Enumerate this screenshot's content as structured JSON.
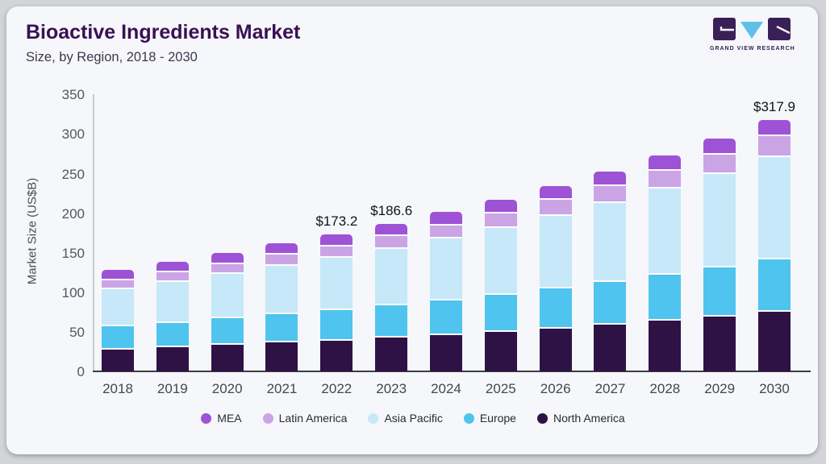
{
  "header": {
    "title": "Bioactive Ingredients Market",
    "subtitle": "Size, by Region, 2018 - 2030"
  },
  "logo": {
    "text": "GRAND VIEW RESEARCH"
  },
  "colors": {
    "page_bg": "#d3d4d8",
    "card_bg": "#f5f7fa",
    "title": "#3a1053",
    "axis_line": "#3c3c44",
    "yaxis_line": "#c9cbd2",
    "tick_text": "#55555e",
    "logo_dark": "#3b2058",
    "logo_blue": "#5ec1e8"
  },
  "chart_data": {
    "type": "bar",
    "stacked": true,
    "title": "Bioactive Ingredients Market Size, by Region, 2018 - 2030",
    "ylabel": "Market Size (US$B)",
    "ylim": [
      0,
      350
    ],
    "yticks": [
      0,
      50,
      100,
      150,
      200,
      250,
      300,
      350
    ],
    "grid": false,
    "legend_position": "bottom",
    "categories": [
      "2018",
      "2019",
      "2020",
      "2021",
      "2022",
      "2023",
      "2024",
      "2025",
      "2026",
      "2027",
      "2028",
      "2029",
      "2030"
    ],
    "series": [
      {
        "name": "North America",
        "color": "#2e1245",
        "values": [
          30.0,
          32.4,
          35.3,
          38.2,
          41.0,
          44.4,
          48.0,
          52.0,
          56.3,
          60.9,
          65.9,
          71.3,
          77.3
        ]
      },
      {
        "name": "Europe",
        "color": "#4fc4ef",
        "values": [
          29.1,
          31.2,
          33.6,
          36.0,
          38.3,
          41.0,
          43.9,
          47.0,
          50.4,
          54.0,
          57.9,
          62.0,
          66.4
        ]
      },
      {
        "name": "Asia Pacific",
        "color": "#c6e8f8",
        "values": [
          47.1,
          51.2,
          56.0,
          61.0,
          65.8,
          71.5,
          77.8,
          84.7,
          92.1,
          100.2,
          109.0,
          118.6,
          129.1
        ]
      },
      {
        "name": "Latin America",
        "color": "#cba4e6",
        "values": [
          11.3,
          12.1,
          13.0,
          14.0,
          14.9,
          16.0,
          17.1,
          18.4,
          19.7,
          21.1,
          22.7,
          24.3,
          26.1
        ]
      },
      {
        "name": "MEA",
        "color": "#9e52d6",
        "values": [
          10.8,
          11.3,
          12.0,
          12.6,
          13.2,
          13.8,
          14.5,
          15.2,
          15.9,
          16.7,
          17.5,
          18.3,
          19.1
        ]
      }
    ],
    "totals": [
      128.3,
      138.2,
      149.9,
      161.8,
      173.2,
      186.7,
      201.3,
      217.3,
      234.4,
      252.9,
      273.0,
      294.5,
      318.0
    ],
    "value_labels": {
      "2022": "$173.2",
      "2023": "$186.6",
      "2030": "$317.9"
    },
    "legend": [
      {
        "label": "MEA",
        "color": "#9e52d6"
      },
      {
        "label": "Latin America",
        "color": "#cba4e6"
      },
      {
        "label": "Asia Pacific",
        "color": "#c6e8f8"
      },
      {
        "label": "Europe",
        "color": "#4fc4ef"
      },
      {
        "label": "North America",
        "color": "#2e1245"
      }
    ]
  }
}
